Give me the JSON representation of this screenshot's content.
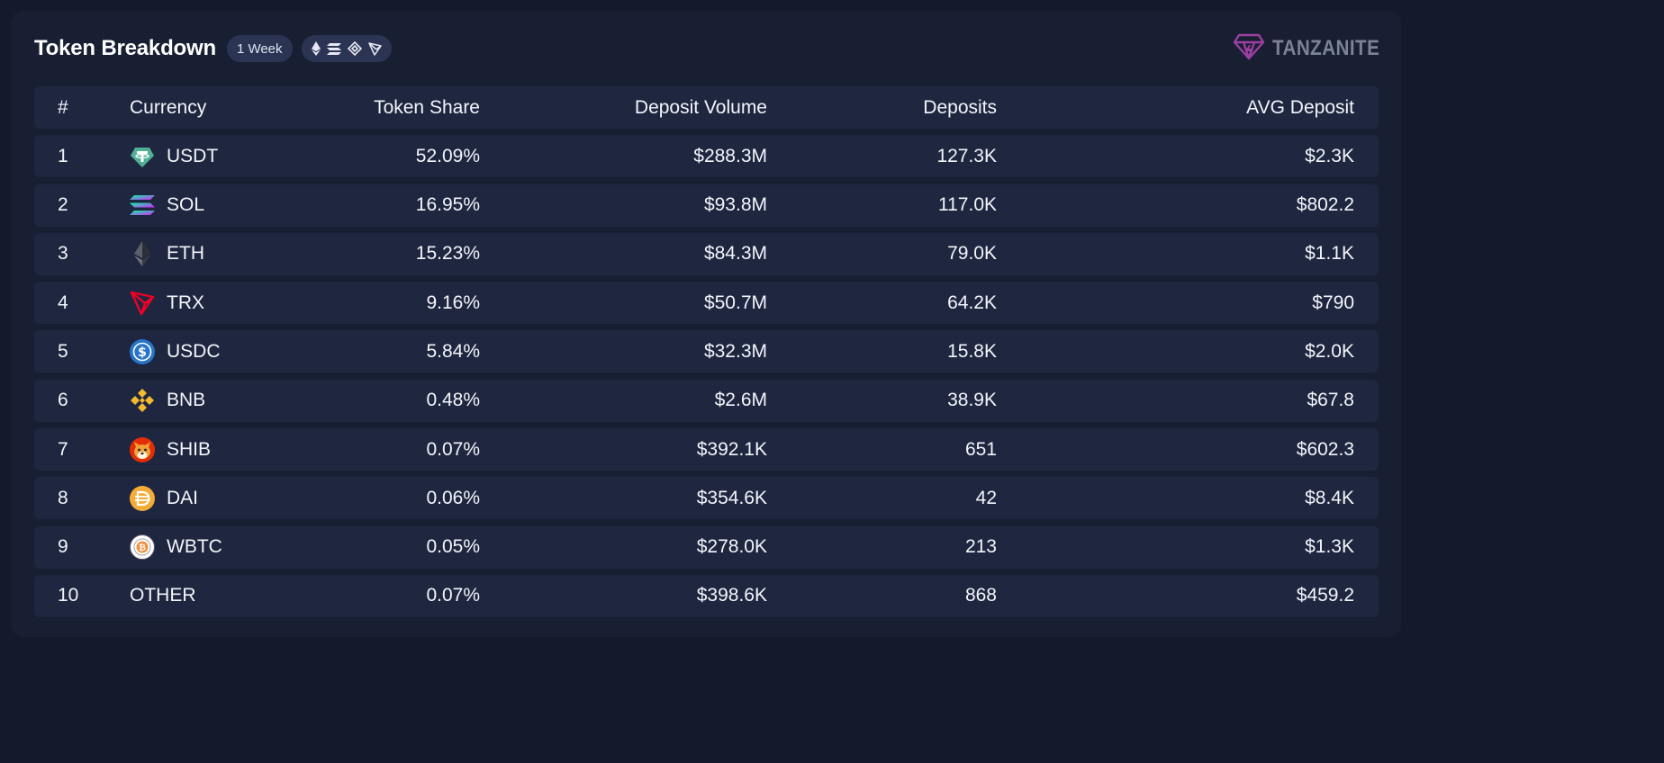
{
  "header": {
    "title": "Token Breakdown",
    "period": "1 Week",
    "chains": [
      "ethereum-icon",
      "solana-icon",
      "bnb-icon",
      "tron-icon"
    ],
    "brand": "TANZANITE"
  },
  "colors": {
    "accent_brand": "#9b3fa0",
    "usdt": "#50af95",
    "sol_top": "#00ffa3",
    "sol_bottom": "#dc1fff",
    "trx": "#ef0027",
    "usdc": "#2775ca",
    "bnb": "#f3ba2f",
    "dai": "#f5ac37",
    "wbtc": "#f09242"
  },
  "table": {
    "columns": [
      "#",
      "Currency",
      "Token Share",
      "Deposit Volume",
      "Deposits",
      "AVG Deposit"
    ],
    "rows": [
      {
        "rank": "1",
        "icon": "usdt-icon",
        "currency": "USDT",
        "share": "52.09%",
        "volume": "$288.3M",
        "deposits": "127.3K",
        "avg": "$2.3K"
      },
      {
        "rank": "2",
        "icon": "sol-icon",
        "currency": "SOL",
        "share": "16.95%",
        "volume": "$93.8M",
        "deposits": "117.0K",
        "avg": "$802.2"
      },
      {
        "rank": "3",
        "icon": "eth-icon",
        "currency": "ETH",
        "share": "15.23%",
        "volume": "$84.3M",
        "deposits": "79.0K",
        "avg": "$1.1K"
      },
      {
        "rank": "4",
        "icon": "trx-icon",
        "currency": "TRX",
        "share": "9.16%",
        "volume": "$50.7M",
        "deposits": "64.2K",
        "avg": "$790"
      },
      {
        "rank": "5",
        "icon": "usdc-icon",
        "currency": "USDC",
        "share": "5.84%",
        "volume": "$32.3M",
        "deposits": "15.8K",
        "avg": "$2.0K"
      },
      {
        "rank": "6",
        "icon": "bnb-icon",
        "currency": "BNB",
        "share": "0.48%",
        "volume": "$2.6M",
        "deposits": "38.9K",
        "avg": "$67.8"
      },
      {
        "rank": "7",
        "icon": "shib-icon",
        "currency": "SHIB",
        "share": "0.07%",
        "volume": "$392.1K",
        "deposits": "651",
        "avg": "$602.3"
      },
      {
        "rank": "8",
        "icon": "dai-icon",
        "currency": "DAI",
        "share": "0.06%",
        "volume": "$354.6K",
        "deposits": "42",
        "avg": "$8.4K"
      },
      {
        "rank": "9",
        "icon": "wbtc-icon",
        "currency": "WBTC",
        "share": "0.05%",
        "volume": "$278.0K",
        "deposits": "213",
        "avg": "$1.3K"
      },
      {
        "rank": "10",
        "icon": "",
        "currency": "OTHER",
        "share": "0.07%",
        "volume": "$398.6K",
        "deposits": "868",
        "avg": "$459.2"
      }
    ]
  }
}
